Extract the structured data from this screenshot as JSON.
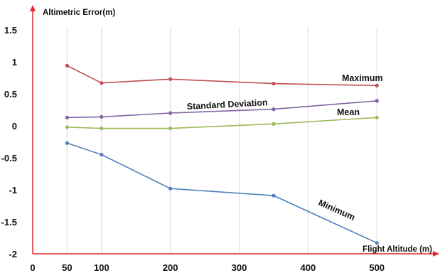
{
  "chart_data": {
    "type": "line",
    "ylabel": "Altimetric Error(m)",
    "xlabel": "Flight Altitude (m)",
    "x": [
      50,
      100,
      200,
      350,
      500
    ],
    "xlim": [
      0,
      570
    ],
    "ylim": [
      -2,
      1.5
    ],
    "x_ticks": [
      "0",
      "50",
      "100",
      "200",
      "300",
      "400",
      "500"
    ],
    "y_ticks": [
      "1.5",
      "1",
      "0.5",
      "0",
      "-0.5",
      "-1",
      "-1.5",
      "-2"
    ],
    "grid": "vertical",
    "series": [
      {
        "name": "Maximum",
        "color": "#c0504d",
        "values": [
          0.94,
          0.67,
          0.73,
          0.66,
          0.63
        ]
      },
      {
        "name": "Standard Deviation",
        "color": "#8064a2",
        "values": [
          0.13,
          0.14,
          0.2,
          0.26,
          0.39
        ]
      },
      {
        "name": "Mean",
        "color": "#9bbb59",
        "values": [
          -0.02,
          -0.04,
          -0.04,
          0.03,
          0.13
        ]
      },
      {
        "name": "Minimum",
        "color": "#4f81bd",
        "values": [
          -0.27,
          -0.45,
          -0.98,
          -1.09,
          -1.83
        ]
      }
    ],
    "axis_color": "#e8252a"
  }
}
